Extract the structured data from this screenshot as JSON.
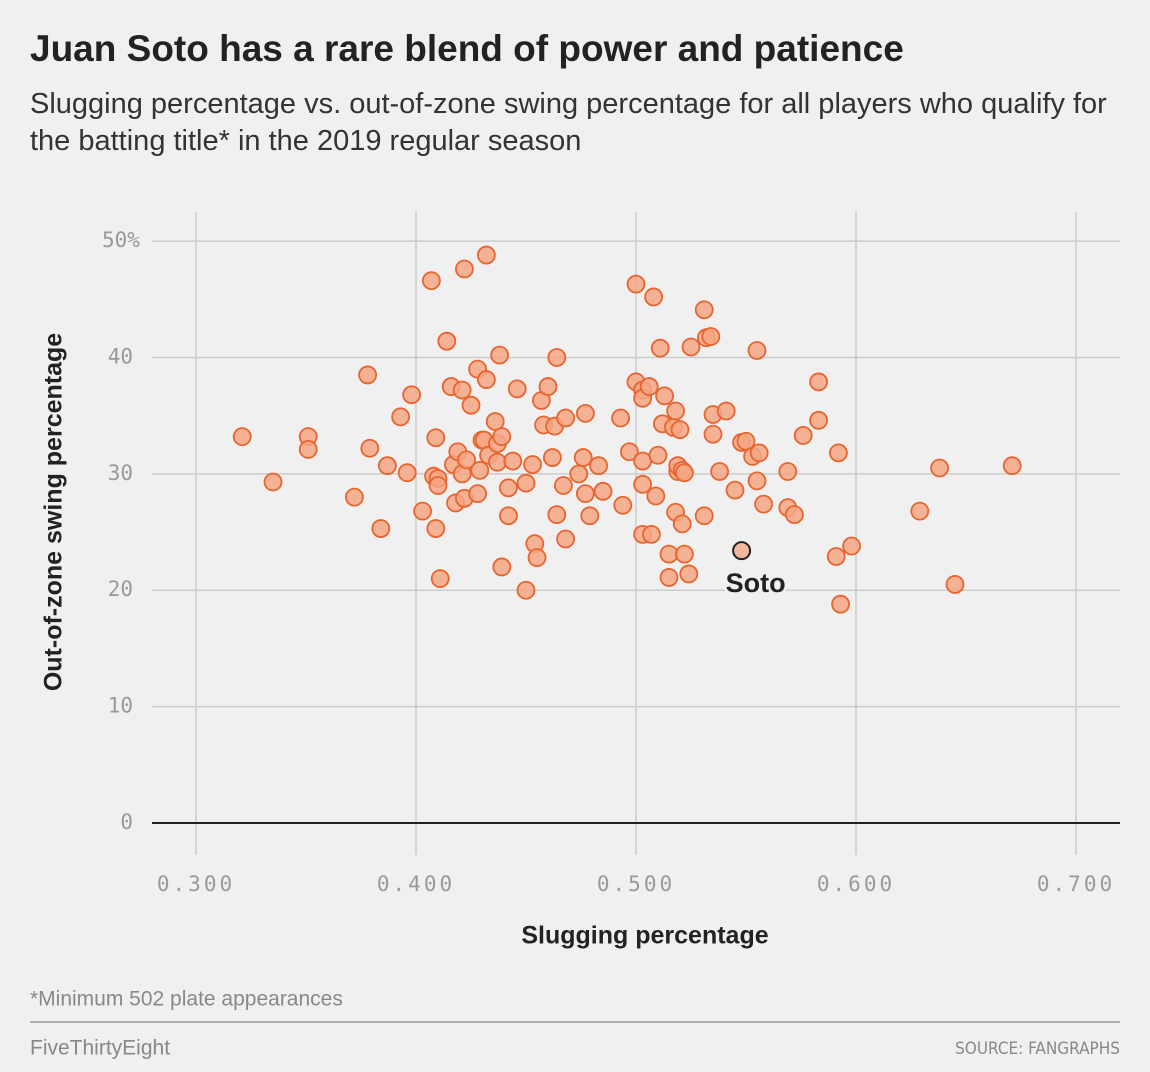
{
  "chart_data": {
    "type": "scatter",
    "title": "Juan Soto has a rare blend of power and patience",
    "subtitle": "Slugging percentage vs. out-of-zone swing percentage for all players who qualify for the batting title* in the 2019 regular season",
    "x_label": "Slugging percentage",
    "y_label": "Out-of-zone swing percentage",
    "footnote": "*Minimum 502 plate appearances",
    "brand": "FiveThirtyEight",
    "source": "SOURCE: FANGRAPHS",
    "xlim": [
      0.28,
      0.72
    ],
    "ylim": [
      -2.75,
      52.5
    ],
    "xticks": [
      {
        "value": 0.3,
        "label": "0.300"
      },
      {
        "value": 0.4,
        "label": "0.400"
      },
      {
        "value": 0.5,
        "label": "0.500"
      },
      {
        "value": 0.6,
        "label": "0.600"
      },
      {
        "value": 0.7,
        "label": "0.700"
      }
    ],
    "yticks": [
      0,
      10,
      20,
      30,
      40,
      {
        "value": 50,
        "label": "50%"
      }
    ],
    "grid": true,
    "color": "#f4a684",
    "edge_color": "#e8652f",
    "x": [
      0.321,
      0.335,
      0.351,
      0.351,
      0.372,
      0.378,
      0.379,
      0.384,
      0.387,
      0.393,
      0.396,
      0.398,
      0.403,
      0.407,
      0.408,
      0.409,
      0.409,
      0.41,
      0.41,
      0.411,
      0.414,
      0.416,
      0.417,
      0.418,
      0.419,
      0.421,
      0.421,
      0.422,
      0.422,
      0.423,
      0.425,
      0.428,
      0.428,
      0.429,
      0.43,
      0.431,
      0.432,
      0.432,
      0.433,
      0.436,
      0.437,
      0.437,
      0.438,
      0.439,
      0.439,
      0.442,
      0.442,
      0.444,
      0.446,
      0.45,
      0.45,
      0.453,
      0.454,
      0.455,
      0.457,
      0.458,
      0.46,
      0.462,
      0.463,
      0.464,
      0.464,
      0.467,
      0.468,
      0.468,
      0.474,
      0.476,
      0.477,
      0.477,
      0.479,
      0.483,
      0.485,
      0.493,
      0.494,
      0.497,
      0.5,
      0.5,
      0.503,
      0.503,
      0.503,
      0.503,
      0.503,
      0.506,
      0.507,
      0.508,
      0.509,
      0.51,
      0.511,
      0.512,
      0.513,
      0.515,
      0.515,
      0.517,
      0.518,
      0.519,
      0.519,
      0.52,
      0.518,
      0.521,
      0.521,
      0.522,
      0.522,
      0.524,
      0.525,
      0.531,
      0.531,
      0.532,
      0.534,
      0.535,
      0.535,
      0.538,
      0.541,
      0.545,
      0.548,
      0.55,
      0.553,
      0.555,
      0.555,
      0.556,
      0.558,
      0.569,
      0.569,
      0.572,
      0.576,
      0.583,
      0.583,
      0.591,
      0.592,
      0.593,
      0.598,
      0.629,
      0.638,
      0.645,
      0.671
    ],
    "y": [
      33.2,
      29.3,
      33.2,
      32.1,
      28.0,
      38.5,
      32.2,
      25.3,
      30.7,
      34.9,
      30.1,
      36.8,
      26.8,
      46.6,
      29.8,
      33.1,
      25.3,
      29.6,
      29.0,
      21.0,
      41.4,
      37.5,
      30.8,
      27.5,
      31.9,
      37.2,
      30.0,
      47.6,
      27.9,
      31.2,
      35.9,
      28.3,
      39.0,
      30.3,
      32.9,
      32.9,
      38.1,
      48.8,
      31.6,
      34.5,
      31.0,
      32.6,
      40.2,
      33.2,
      22.0,
      28.8,
      26.4,
      31.1,
      37.3,
      29.2,
      20.0,
      30.8,
      24.0,
      22.8,
      36.3,
      34.2,
      37.5,
      31.4,
      34.1,
      40.0,
      26.5,
      29.0,
      24.4,
      34.8,
      30.0,
      31.4,
      28.3,
      35.2,
      26.4,
      30.7,
      28.5,
      34.8,
      27.3,
      31.9,
      46.3,
      37.9,
      24.8,
      37.2,
      36.5,
      29.1,
      31.1,
      37.5,
      24.8,
      45.2,
      28.1,
      31.6,
      40.8,
      34.3,
      36.7,
      23.1,
      21.1,
      34.0,
      35.4,
      30.2,
      30.7,
      33.8,
      26.7,
      25.7,
      30.3,
      30.1,
      23.1,
      21.4,
      40.9,
      44.1,
      26.4,
      41.7,
      41.8,
      33.4,
      35.1,
      30.2,
      35.4,
      28.6,
      32.7,
      32.8,
      31.5,
      40.6,
      29.4,
      31.8,
      27.4,
      30.2,
      27.1,
      26.5,
      33.3,
      37.9,
      34.6,
      22.9,
      31.8,
      18.8,
      23.8,
      26.8,
      30.5,
      20.5,
      30.7
    ],
    "highlight": {
      "label": "Soto",
      "x": 0.548,
      "y": 23.4,
      "color": "#f2b89e",
      "edge_color": "#222222"
    }
  }
}
